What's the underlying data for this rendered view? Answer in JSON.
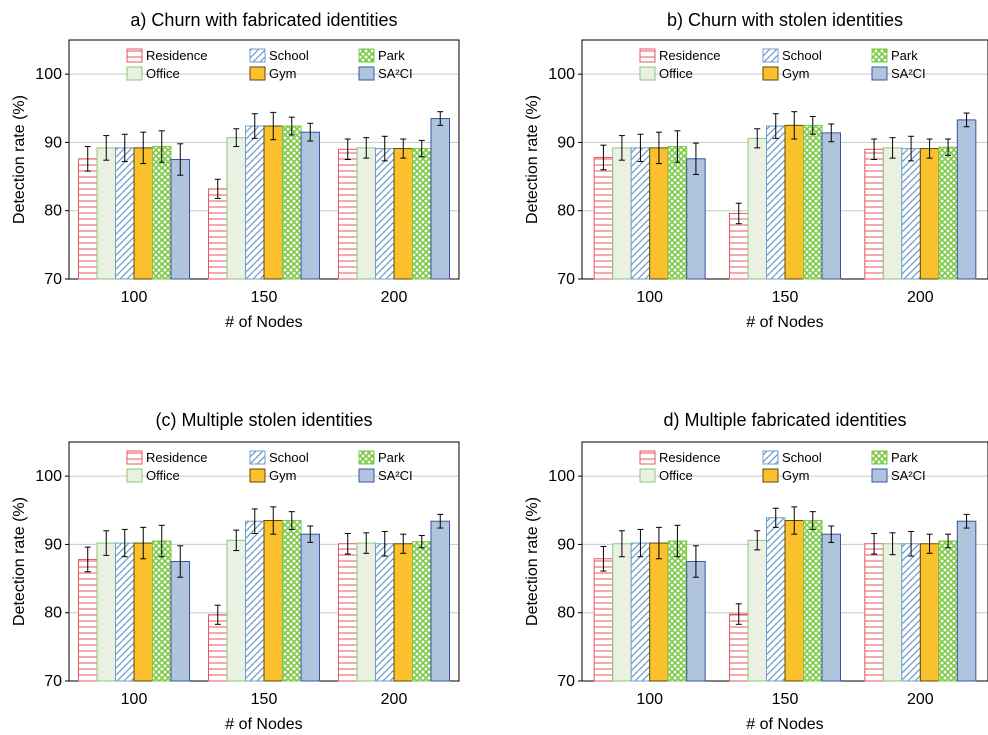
{
  "chart_data": [
    {
      "type": "bar",
      "title": "a) Churn with fabricated identities",
      "xlabel": "# of Nodes",
      "ylabel": "Detection rate (%)",
      "ylim": [
        70,
        105
      ],
      "yticks": [
        70,
        80,
        90,
        100
      ],
      "categories": [
        "100",
        "150",
        "200"
      ],
      "grid": "horizontal",
      "legend_placement": "top",
      "series": [
        {
          "name": "Residence",
          "values": [
            87.6,
            83.2,
            89.0
          ],
          "errors": [
            1.8,
            1.4,
            1.5
          ]
        },
        {
          "name": "Office",
          "values": [
            89.2,
            90.7,
            89.2
          ],
          "errors": [
            1.8,
            1.3,
            1.5
          ]
        },
        {
          "name": "School",
          "values": [
            89.2,
            92.4,
            89.1
          ],
          "errors": [
            2.0,
            1.8,
            1.8
          ]
        },
        {
          "name": "Gym",
          "values": [
            89.2,
            92.4,
            89.1
          ],
          "errors": [
            2.3,
            2.0,
            1.4
          ]
        },
        {
          "name": "Park",
          "values": [
            89.4,
            92.4,
            89.1
          ],
          "errors": [
            2.3,
            1.3,
            1.2
          ]
        },
        {
          "name": "SA²CI",
          "values": [
            87.5,
            91.5,
            93.5
          ],
          "errors": [
            2.3,
            1.3,
            1.0
          ]
        }
      ]
    },
    {
      "type": "bar",
      "title": "b) Churn with stolen identities",
      "xlabel": "# of Nodes",
      "ylabel": "Detection rate (%)",
      "ylim": [
        70,
        105
      ],
      "yticks": [
        70,
        80,
        90,
        100
      ],
      "categories": [
        "100",
        "150",
        "200"
      ],
      "grid": "horizontal",
      "legend_placement": "top",
      "series": [
        {
          "name": "Residence",
          "values": [
            87.8,
            79.6,
            89.0
          ],
          "errors": [
            1.8,
            1.5,
            1.5
          ]
        },
        {
          "name": "Office",
          "values": [
            89.2,
            90.6,
            89.2
          ],
          "errors": [
            1.8,
            1.4,
            1.5
          ]
        },
        {
          "name": "School",
          "values": [
            89.2,
            92.4,
            89.1
          ],
          "errors": [
            2.0,
            1.8,
            1.8
          ]
        },
        {
          "name": "Gym",
          "values": [
            89.2,
            92.5,
            89.1
          ],
          "errors": [
            2.3,
            2.0,
            1.4
          ]
        },
        {
          "name": "Park",
          "values": [
            89.4,
            92.5,
            89.3
          ],
          "errors": [
            2.3,
            1.3,
            1.2
          ]
        },
        {
          "name": "SA²CI",
          "values": [
            87.6,
            91.4,
            93.3
          ],
          "errors": [
            2.3,
            1.3,
            1.0
          ]
        }
      ]
    },
    {
      "type": "bar",
      "title": "(c) Multiple stolen identities",
      "xlabel": "# of Nodes",
      "ylabel": "Detection rate (%)",
      "ylim": [
        70,
        105
      ],
      "yticks": [
        70,
        80,
        90,
        100
      ],
      "categories": [
        "100",
        "150",
        "200"
      ],
      "grid": "horizontal",
      "legend_placement": "top",
      "series": [
        {
          "name": "Residence",
          "values": [
            87.8,
            79.7,
            90.1
          ],
          "errors": [
            1.8,
            1.4,
            1.5
          ]
        },
        {
          "name": "Office",
          "values": [
            90.2,
            90.6,
            90.2
          ],
          "errors": [
            1.8,
            1.5,
            1.5
          ]
        },
        {
          "name": "School",
          "values": [
            90.2,
            93.4,
            90.1
          ],
          "errors": [
            2.0,
            1.8,
            1.8
          ]
        },
        {
          "name": "Gym",
          "values": [
            90.2,
            93.5,
            90.1
          ],
          "errors": [
            2.3,
            2.0,
            1.4
          ]
        },
        {
          "name": "Park",
          "values": [
            90.5,
            93.5,
            90.4
          ],
          "errors": [
            2.3,
            1.3,
            0.9
          ]
        },
        {
          "name": "SA²CI",
          "values": [
            87.5,
            91.5,
            93.4
          ],
          "errors": [
            2.3,
            1.2,
            1.0
          ]
        }
      ]
    },
    {
      "type": "bar",
      "title": "d) Multiple fabricated identities",
      "xlabel": "# of Nodes",
      "ylabel": "Detection rate (%)",
      "ylim": [
        70,
        105
      ],
      "yticks": [
        70,
        80,
        90,
        100
      ],
      "categories": [
        "100",
        "150",
        "200"
      ],
      "grid": "horizontal",
      "legend_placement": "top",
      "series": [
        {
          "name": "Residence",
          "values": [
            87.9,
            79.8,
            90.1
          ],
          "errors": [
            1.8,
            1.5,
            1.5
          ]
        },
        {
          "name": "Office",
          "values": [
            90.1,
            90.6,
            90.1
          ],
          "errors": [
            1.9,
            1.4,
            1.6
          ]
        },
        {
          "name": "School",
          "values": [
            90.2,
            93.9,
            90.1
          ],
          "errors": [
            2.0,
            1.4,
            1.8
          ]
        },
        {
          "name": "Gym",
          "values": [
            90.2,
            93.5,
            90.1
          ],
          "errors": [
            2.3,
            2.0,
            1.4
          ]
        },
        {
          "name": "Park",
          "values": [
            90.5,
            93.5,
            90.5
          ],
          "errors": [
            2.3,
            1.3,
            1.0
          ]
        },
        {
          "name": "SA²CI",
          "values": [
            87.5,
            91.5,
            93.4
          ],
          "errors": [
            2.3,
            1.2,
            1.0
          ]
        }
      ]
    }
  ],
  "legend": {
    "row1": [
      "Residence",
      "School",
      "Park"
    ],
    "row2": [
      "Office",
      "Gym",
      "SA²CI"
    ]
  },
  "styles": {
    "Residence": {
      "fill": "#ffffff",
      "stroke": "#e8575f",
      "pattern": "horizontal-lines"
    },
    "Office": {
      "fill": "#eaf1e2",
      "stroke": "#8bc877",
      "pattern": "solid"
    },
    "School": {
      "fill": "#ffffff",
      "stroke": "#6f9ecb",
      "pattern": "diagonal-lines"
    },
    "Gym": {
      "fill": "#fbc02d",
      "stroke": "#5c4a00",
      "pattern": "solid"
    },
    "Park": {
      "fill": "#ffffff",
      "stroke": "#7ac943",
      "pattern": "crosshatch"
    },
    "SA²CI": {
      "fill": "#b0c4de",
      "stroke": "#3a55a3",
      "pattern": "solid"
    }
  }
}
